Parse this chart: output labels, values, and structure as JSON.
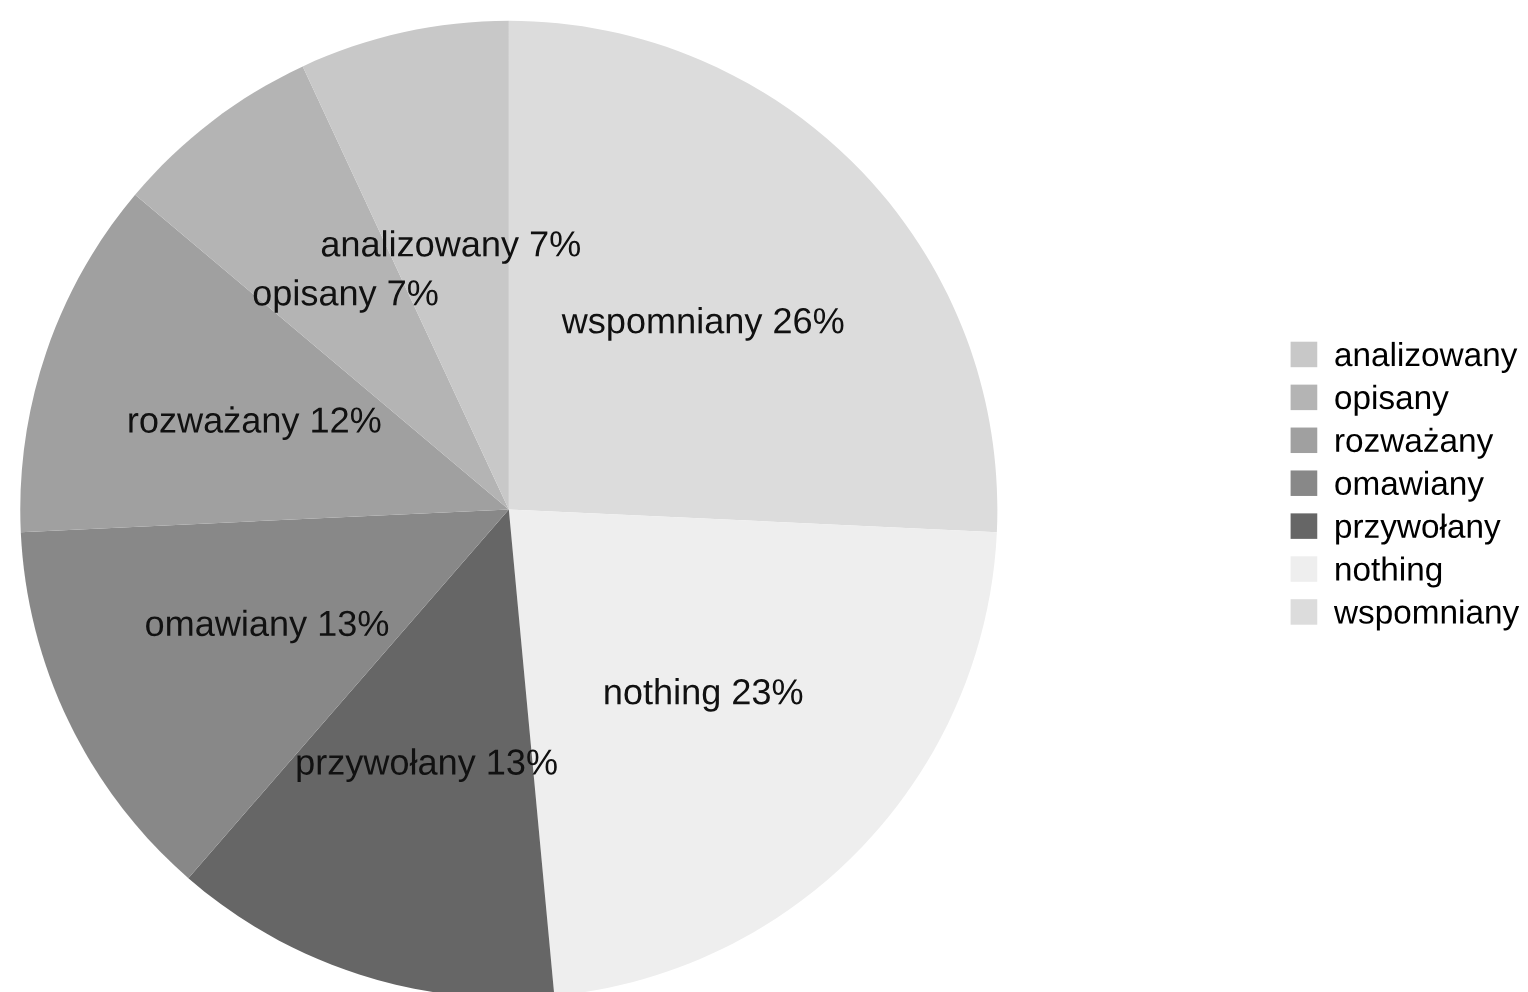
{
  "chart_data": {
    "type": "pie",
    "categories": [
      "wspomniany",
      "nothing",
      "przywołany",
      "omawiany",
      "rozważany",
      "opisany",
      "analizowany"
    ],
    "values": [
      26,
      23,
      13,
      13,
      12,
      7,
      7
    ],
    "colors": [
      "#dcdcdc",
      "#eeeeee",
      "#666666",
      "#888888",
      "#a0a0a0",
      "#b4b4b4",
      "#c8c8c8"
    ],
    "value_labels": [
      "wspomniany 26%",
      "nothing 23%",
      "przywołany 13%",
      "omawiany 13%",
      "rozważany 12%",
      "opisany 7%",
      "analizowany 7%"
    ],
    "legend": "right"
  }
}
